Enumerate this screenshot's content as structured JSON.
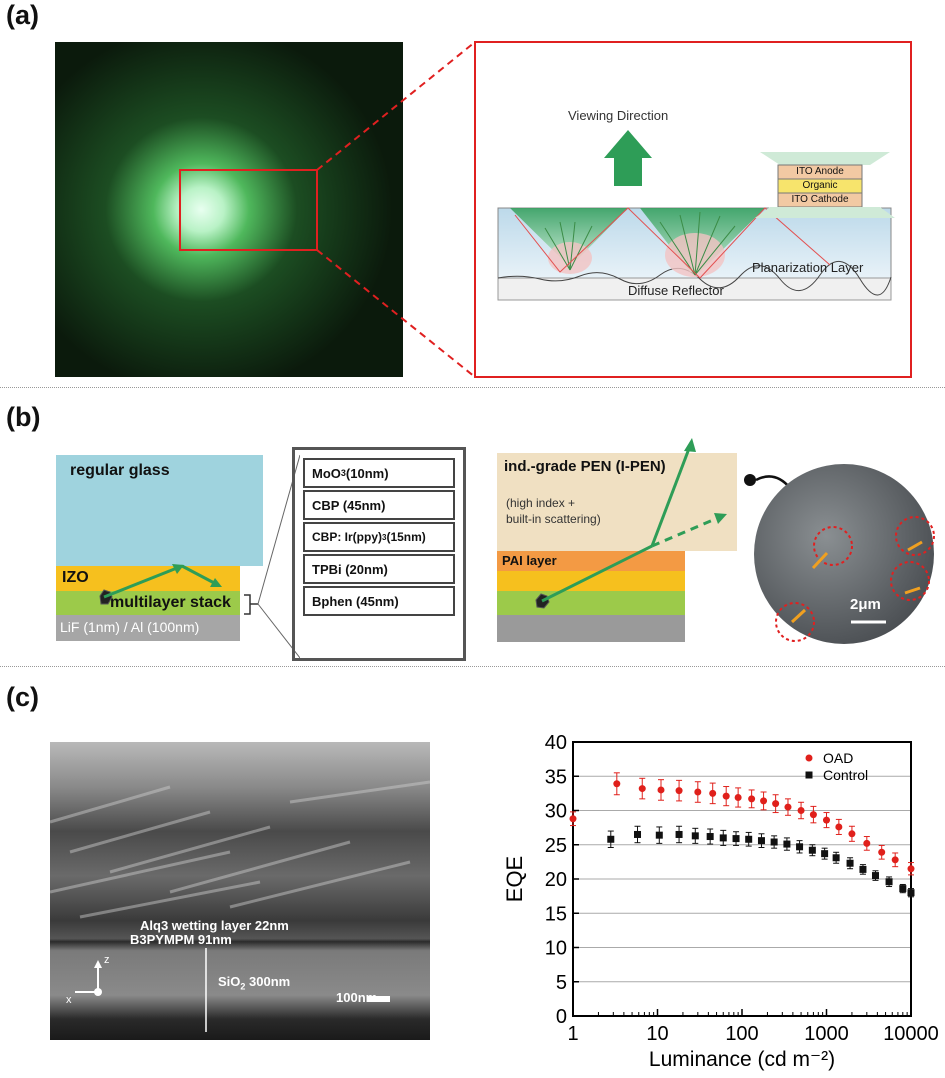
{
  "panel_a": {
    "letter": "(a)",
    "viewing_direction": "Viewing Direction",
    "ito_anode": "ITO Anode",
    "organic": "Organic",
    "ito_cathode": "ITO Cathode",
    "planarization": "Planarization Layer",
    "diffuse_reflector": "Diffuse Reflector"
  },
  "panel_b": {
    "letter": "(b)",
    "regular_glass": "regular glass",
    "izo": "IZO",
    "multilayer": "multilayer stack",
    "lif": "LiF (1nm) / Al (100nm)",
    "stack": [
      {
        "label": "MoO",
        "sub": "3",
        "rest": " (10nm)"
      },
      {
        "label": "CBP (45nm)",
        "sub": "",
        "rest": ""
      },
      {
        "label": "CBP: Ir(ppy)",
        "sub": "3",
        "rest": " (15nm)"
      },
      {
        "label": "TPBi (20nm)",
        "sub": "",
        "rest": ""
      },
      {
        "label": "Bphen (45nm)",
        "sub": "",
        "rest": ""
      }
    ],
    "pen_title": "ind.-grade PEN (I-PEN)",
    "pen_note_1": "(high index +",
    "pen_note_2": "built-in scattering)",
    "pai": "PAI layer",
    "scale": "2μm"
  },
  "panel_c": {
    "letter": "(c)",
    "alq3": "Alq3 wetting layer 22nm",
    "b3py": "B3PYMPM 91nm",
    "sio2": "SiO",
    "sio2_sub": "2",
    "sio2_rest": " 300nm",
    "scale": "100nm",
    "axis_z": "z",
    "axis_x": "x"
  },
  "chart_data": {
    "type": "scatter",
    "xlabel": "Luminance (cd m⁻²)",
    "ylabel": "EQE",
    "xscale": "log",
    "xlim": [
      1,
      10000
    ],
    "ylim": [
      0,
      40
    ],
    "xticks": [
      "1",
      "10",
      "100",
      "1000",
      "10000"
    ],
    "yticks": [
      "0",
      "5",
      "10",
      "15",
      "20",
      "25",
      "30",
      "35",
      "40"
    ],
    "grid": "horizontal",
    "legend_position": "top-right",
    "series": [
      {
        "name": "OAD",
        "color": "#e0201b",
        "marker": "circle",
        "x": [
          1,
          3.3,
          6.6,
          11,
          18,
          30,
          45,
          65,
          90,
          130,
          180,
          250,
          350,
          500,
          700,
          1000,
          1400,
          2000,
          3000,
          4500,
          6500,
          10000
        ],
        "y": [
          28.8,
          33.9,
          33.2,
          33.0,
          32.9,
          32.7,
          32.5,
          32.1,
          31.9,
          31.7,
          31.4,
          31.0,
          30.5,
          30.0,
          29.4,
          28.6,
          27.6,
          26.6,
          25.2,
          23.9,
          22.8,
          21.5
        ],
        "err": [
          1.0,
          1.6,
          1.5,
          1.5,
          1.5,
          1.5,
          1.5,
          1.4,
          1.4,
          1.3,
          1.3,
          1.3,
          1.2,
          1.2,
          1.2,
          1.1,
          1.1,
          1.1,
          1.0,
          1.0,
          1.0,
          0.9
        ]
      },
      {
        "name": "Control",
        "color": "#111111",
        "marker": "square",
        "x": [
          2.8,
          5.8,
          10.5,
          18,
          28,
          42,
          60,
          85,
          120,
          170,
          240,
          340,
          480,
          680,
          950,
          1300,
          1900,
          2700,
          3800,
          5500,
          8000,
          10000
        ],
        "y": [
          25.8,
          26.5,
          26.4,
          26.5,
          26.3,
          26.2,
          26.0,
          25.9,
          25.8,
          25.6,
          25.4,
          25.1,
          24.7,
          24.2,
          23.7,
          23.1,
          22.3,
          21.4,
          20.5,
          19.6,
          18.6,
          18.0
        ],
        "err": [
          1.2,
          1.2,
          1.2,
          1.2,
          1.1,
          1.1,
          1.1,
          1.0,
          1.0,
          1.0,
          0.9,
          0.9,
          0.9,
          0.8,
          0.8,
          0.8,
          0.8,
          0.7,
          0.7,
          0.7,
          0.6,
          0.6
        ]
      }
    ]
  }
}
